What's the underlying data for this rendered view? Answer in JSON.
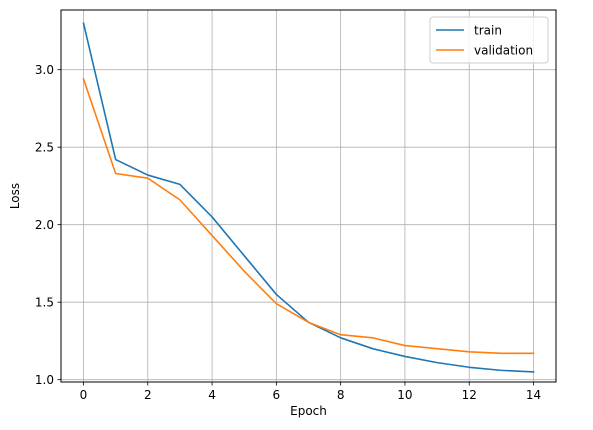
{
  "chart_data": {
    "type": "line",
    "title": "",
    "xlabel": "Epoch",
    "ylabel": "Loss",
    "xlim": [
      -0.7,
      14.7
    ],
    "ylim": [
      0.985,
      3.385
    ],
    "xticks": [
      0,
      2,
      4,
      6,
      8,
      10,
      12,
      14
    ],
    "yticks": [
      1.0,
      1.5,
      2.0,
      2.5,
      3.0
    ],
    "ytick_labels": [
      "1.0",
      "1.5",
      "2.0",
      "2.5",
      "3.0"
    ],
    "grid": true,
    "legend": "top-right",
    "x": [
      0,
      1,
      2,
      3,
      4,
      5,
      6,
      7,
      8,
      9,
      10,
      11,
      12,
      13,
      14
    ],
    "series": [
      {
        "name": "train",
        "color": "#1f77b4",
        "values": [
          3.3,
          2.42,
          2.32,
          2.26,
          2.05,
          1.8,
          1.55,
          1.37,
          1.27,
          1.2,
          1.15,
          1.11,
          1.08,
          1.06,
          1.05
        ]
      },
      {
        "name": "validation",
        "color": "#ff7f0e",
        "values": [
          2.94,
          2.33,
          2.3,
          2.16,
          1.93,
          1.7,
          1.49,
          1.37,
          1.29,
          1.27,
          1.22,
          1.2,
          1.18,
          1.17,
          1.17
        ]
      }
    ]
  }
}
